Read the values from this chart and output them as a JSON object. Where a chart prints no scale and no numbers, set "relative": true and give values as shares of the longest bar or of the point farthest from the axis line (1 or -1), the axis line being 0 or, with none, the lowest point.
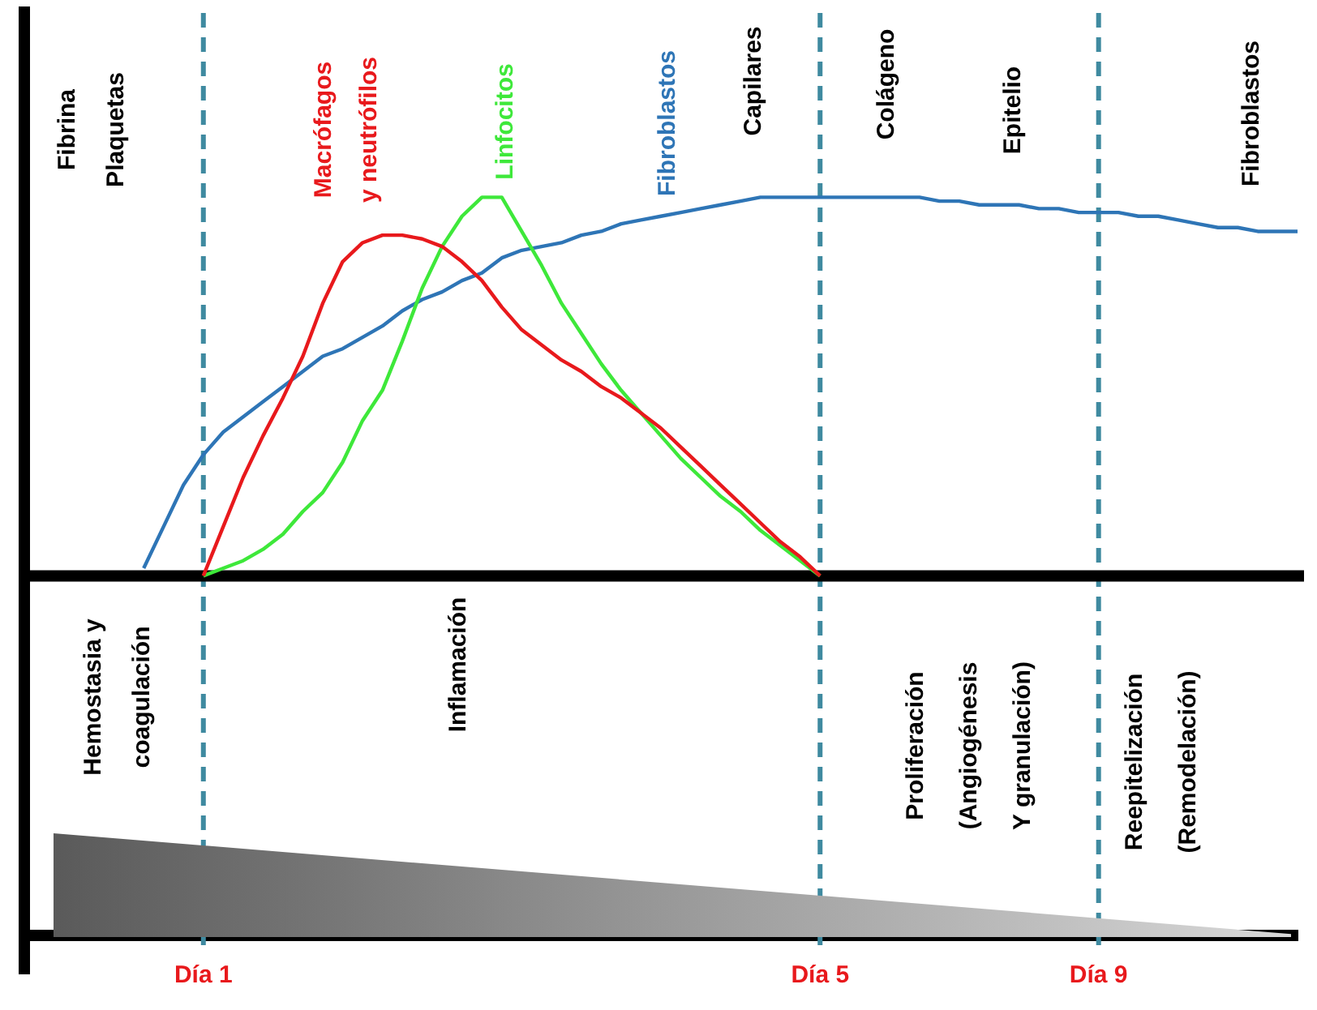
{
  "chart_data": {
    "type": "line",
    "relative": true,
    "legend": false,
    "grid": "x",
    "marker": "none",
    "line_style": "solid",
    "categories": [
      null,
      null,
      null,
      null,
      null,
      null,
      null,
      null,
      null,
      "Día 1",
      null,
      null,
      null,
      null,
      null,
      null,
      null,
      null,
      null,
      null,
      null,
      null,
      null,
      null,
      null,
      null,
      null,
      null,
      null,
      null,
      null,
      null,
      null,
      null,
      null,
      null,
      null,
      null,
      null,
      null,
      "Día 5",
      null,
      null,
      null,
      null,
      null,
      null,
      null,
      null,
      null,
      null,
      null,
      null,
      null,
      "Día 9",
      null,
      null,
      null,
      null,
      null,
      null,
      null,
      null,
      null,
      null
    ],
    "series": [
      {
        "name": "Macrófagos y neutrófilos",
        "color": "#e8191c",
        "values": [
          null,
          null,
          null,
          null,
          null,
          null,
          null,
          null,
          null,
          0,
          0.13,
          0.26,
          0.37,
          0.47,
          0.58,
          0.72,
          0.83,
          0.88,
          0.9,
          0.9,
          0.89,
          0.87,
          0.83,
          0.78,
          0.71,
          0.65,
          0.61,
          0.57,
          0.54,
          0.5,
          0.47,
          0.43,
          0.39,
          0.34,
          0.29,
          0.24,
          0.19,
          0.14,
          0.09,
          0.05,
          0,
          null,
          null,
          null,
          null,
          null,
          null,
          null,
          null,
          null,
          null,
          null,
          null,
          null,
          null,
          null,
          null,
          null,
          null,
          null,
          null,
          null,
          null,
          null,
          null
        ]
      },
      {
        "name": "Linfocitos",
        "color": "#3ee83a",
        "values": [
          null,
          null,
          null,
          null,
          null,
          null,
          null,
          null,
          null,
          0,
          0.02,
          0.04,
          0.07,
          0.11,
          0.17,
          0.22,
          0.3,
          0.41,
          0.49,
          0.62,
          0.76,
          0.87,
          0.95,
          1,
          1,
          0.91,
          0.82,
          0.72,
          0.64,
          0.56,
          0.49,
          0.43,
          0.37,
          0.31,
          0.26,
          0.21,
          0.17,
          0.12,
          0.08,
          0.04,
          0,
          null,
          null,
          null,
          null,
          null,
          null,
          null,
          null,
          null,
          null,
          null,
          null,
          null,
          null,
          null,
          null,
          null,
          null,
          null,
          null,
          null,
          null,
          null,
          null
        ]
      },
      {
        "name": "Fibroblastos",
        "color": "#2e75b6",
        "values": [
          null,
          null,
          null,
          null,
          null,
          null,
          0.02,
          0.13,
          0.24,
          0.32,
          0.38,
          0.42,
          0.46,
          0.5,
          0.54,
          0.58,
          0.6,
          0.63,
          0.66,
          0.7,
          0.73,
          0.75,
          0.78,
          0.8,
          0.84,
          0.86,
          0.87,
          0.88,
          0.9,
          0.91,
          0.93,
          0.94,
          0.95,
          0.96,
          0.97,
          0.98,
          0.99,
          1,
          1,
          1,
          1,
          1,
          1,
          1,
          1,
          1,
          0.99,
          0.99,
          0.98,
          0.98,
          0.98,
          0.97,
          0.97,
          0.96,
          0.96,
          0.96,
          0.95,
          0.95,
          0.94,
          0.93,
          0.92,
          0.92,
          0.91,
          0.91,
          0.91
        ]
      }
    ],
    "annotations": [
      "Fibrina Plaquetas",
      "Capilares",
      "Colágeno",
      "Epitelio",
      "Fibroblastos",
      "Hemostasia y coagulación",
      "Inflamación",
      "Proliferación (Angiogénesis Y granulación)",
      "Reepitelización (Remodelación)"
    ]
  }
}
